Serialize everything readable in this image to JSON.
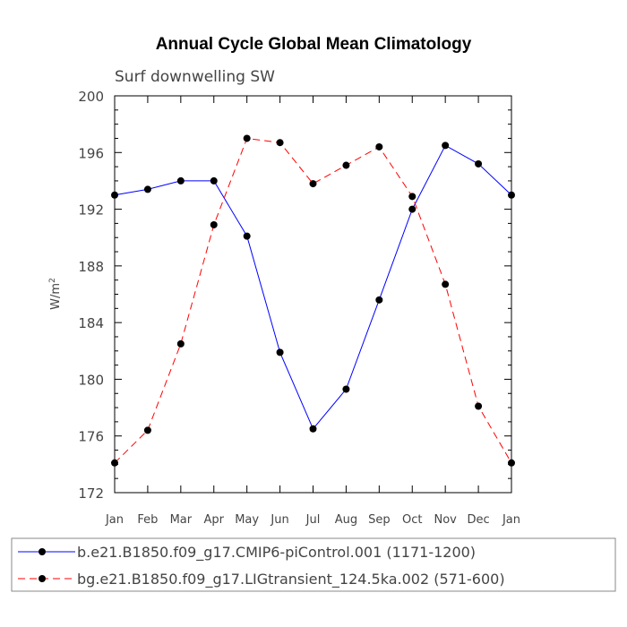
{
  "chart_data": {
    "type": "line",
    "title": "Annual Cycle Global Mean Climatology",
    "subtitle": "Surf downwelling SW",
    "ylabel": "W/m",
    "ylabel_sup": "2",
    "xlabel": "",
    "categories": [
      "Jan",
      "Feb",
      "Mar",
      "Apr",
      "May",
      "Jun",
      "Jul",
      "Aug",
      "Sep",
      "Oct",
      "Nov",
      "Dec",
      "Jan"
    ],
    "ylim": [
      172,
      200
    ],
    "yticks": [
      172,
      176,
      180,
      184,
      188,
      192,
      196,
      200
    ],
    "grid": false,
    "legend_position": "bottom",
    "series": [
      {
        "name": "b.e21.B1850.f09_g17.CMIP6-piControl.001 (1171-1200)",
        "color": "#0000ff",
        "dashed": false,
        "values": [
          193.0,
          193.4,
          194.0,
          194.0,
          190.1,
          181.9,
          176.5,
          179.3,
          185.6,
          192.0,
          196.5,
          195.2,
          193.0
        ]
      },
      {
        "name": "bg.e21.B1850.f09_g17.LIGtransient_124.5ka.002 (571-600)",
        "color": "#ff0000",
        "dashed": true,
        "values": [
          174.1,
          176.4,
          182.5,
          190.9,
          197.0,
          196.7,
          193.8,
          195.1,
          196.4,
          192.9,
          186.7,
          178.1,
          174.1
        ]
      }
    ]
  }
}
